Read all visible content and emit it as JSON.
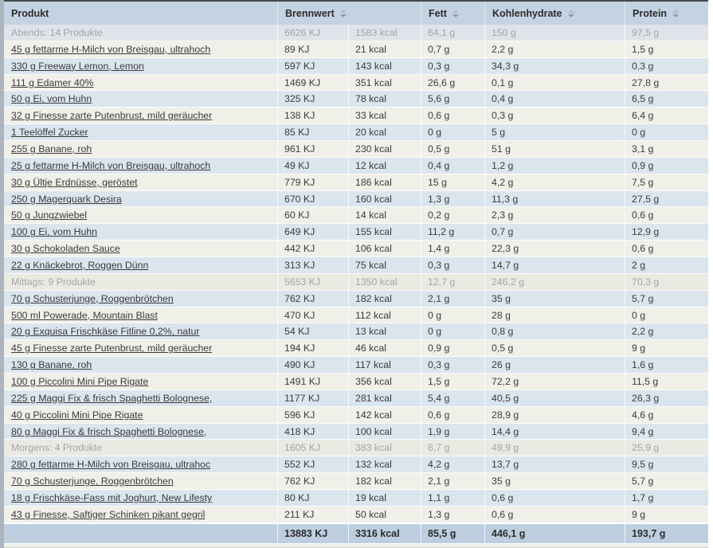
{
  "table": {
    "header": {
      "produkt": {
        "label": "Produkt",
        "sortable": false
      },
      "brennwert": {
        "label": "Brennwert",
        "sortable": true
      },
      "fett": {
        "label": "Fett",
        "sortable": true
      },
      "kohlenhydrate": {
        "label": "Kohlenhydrate",
        "sortable": true
      },
      "protein": {
        "label": "Protein",
        "sortable": true
      }
    },
    "rows": [
      {
        "type": "group",
        "name": "Abends: 14 Produkte",
        "kj": "6626 KJ",
        "kcal": "1583 kcal",
        "fett": "64,1 g",
        "kh": "150 g",
        "protein": "97,5 g"
      },
      {
        "type": "item",
        "name": "45 g fettarme H-Milch von Breisgau, ultrahoch",
        "kj": "89 KJ",
        "kcal": "21 kcal",
        "fett": "0,7 g",
        "kh": "2,2 g",
        "protein": "1,5 g"
      },
      {
        "type": "item",
        "name": "330 g Freeway Lemon, Lemon",
        "kj": "597 KJ",
        "kcal": "143 kcal",
        "fett": "0,3 g",
        "kh": "34,3 g",
        "protein": "0,3 g"
      },
      {
        "type": "item",
        "name": "111 g Edamer 40%",
        "kj": "1469 KJ",
        "kcal": "351 kcal",
        "fett": "26,6 g",
        "kh": "0,1 g",
        "protein": "27,8 g"
      },
      {
        "type": "item",
        "name": "50 g Ei, vom Huhn",
        "kj": "325 KJ",
        "kcal": "78 kcal",
        "fett": "5,6 g",
        "kh": "0,4 g",
        "protein": "6,5 g"
      },
      {
        "type": "item",
        "name": "32 g Finesse zarte Putenbrust, mild geräucher",
        "kj": "138 KJ",
        "kcal": "33 kcal",
        "fett": "0,6 g",
        "kh": "0,3 g",
        "protein": "6,4 g"
      },
      {
        "type": "item",
        "name": "1 Teelöffel Zucker",
        "kj": "85 KJ",
        "kcal": "20 kcal",
        "fett": "0 g",
        "kh": "5 g",
        "protein": "0 g"
      },
      {
        "type": "item",
        "name": "255 g Banane, roh",
        "kj": "961 KJ",
        "kcal": "230 kcal",
        "fett": "0,5 g",
        "kh": "51 g",
        "protein": "3,1 g"
      },
      {
        "type": "item",
        "name": "25 g fettarme H-Milch von Breisgau, ultrahoch",
        "kj": "49 KJ",
        "kcal": "12 kcal",
        "fett": "0,4 g",
        "kh": "1,2 g",
        "protein": "0,9 g"
      },
      {
        "type": "item",
        "name": "30 g Ültje Erdnüsse, geröstet",
        "kj": "779 KJ",
        "kcal": "186 kcal",
        "fett": "15 g",
        "kh": "4,2 g",
        "protein": "7,5 g"
      },
      {
        "type": "item",
        "name": "250 g Magerquark Desira",
        "kj": "670 KJ",
        "kcal": "160 kcal",
        "fett": "1,3 g",
        "kh": "11,3 g",
        "protein": "27,5 g"
      },
      {
        "type": "item",
        "name": "50 g Jungzwiebel",
        "kj": "60 KJ",
        "kcal": "14 kcal",
        "fett": "0,2 g",
        "kh": "2,3 g",
        "protein": "0,6 g"
      },
      {
        "type": "item",
        "name": "100 g Ei, vom Huhn",
        "kj": "649 KJ",
        "kcal": "155 kcal",
        "fett": "11,2 g",
        "kh": "0,7 g",
        "protein": "12,9 g"
      },
      {
        "type": "item",
        "name": "30 g Schokoladen Sauce",
        "kj": "442 KJ",
        "kcal": "106 kcal",
        "fett": "1,4 g",
        "kh": "22,3 g",
        "protein": "0,6 g"
      },
      {
        "type": "item",
        "name": "22 g Knäckebrot, Roggen Dünn",
        "kj": "313 KJ",
        "kcal": "75 kcal",
        "fett": "0,3 g",
        "kh": "14,7 g",
        "protein": "2 g"
      },
      {
        "type": "group",
        "name": "Mittags: 9 Produkte",
        "kj": "5653 KJ",
        "kcal": "1350 kcal",
        "fett": "12,7 g",
        "kh": "246,2 g",
        "protein": "70,3 g"
      },
      {
        "type": "item",
        "name": "70 g Schusterjunge, Roggenbrötchen",
        "kj": "762 KJ",
        "kcal": "182 kcal",
        "fett": "2,1 g",
        "kh": "35 g",
        "protein": "5,7 g"
      },
      {
        "type": "item",
        "name": "500 ml Powerade, Mountain Blast",
        "kj": "470 KJ",
        "kcal": "112 kcal",
        "fett": "0 g",
        "kh": "28 g",
        "protein": "0 g"
      },
      {
        "type": "item",
        "name": "20 g Exquisa Frischkäse Fitline 0,2%, natur",
        "kj": "54 KJ",
        "kcal": "13 kcal",
        "fett": "0 g",
        "kh": "0,8 g",
        "protein": "2,2 g"
      },
      {
        "type": "item",
        "name": "45 g Finesse zarte Putenbrust, mild geräucher",
        "kj": "194 KJ",
        "kcal": "46 kcal",
        "fett": "0,9 g",
        "kh": "0,5 g",
        "protein": "9 g"
      },
      {
        "type": "item",
        "name": "130 g Banane, roh",
        "kj": "490 KJ",
        "kcal": "117 kcal",
        "fett": "0,3 g",
        "kh": "26 g",
        "protein": "1,6 g"
      },
      {
        "type": "item",
        "name": "100 g Piccolini Mini Pipe Rigate",
        "kj": "1491 KJ",
        "kcal": "356 kcal",
        "fett": "1,5 g",
        "kh": "72,2 g",
        "protein": "11,5 g"
      },
      {
        "type": "item",
        "name": "225 g Maggi Fix & frisch Spaghetti Bolognese,",
        "kj": "1177 KJ",
        "kcal": "281 kcal",
        "fett": "5,4 g",
        "kh": "40,5 g",
        "protein": "26,3 g"
      },
      {
        "type": "item",
        "name": "40 g Piccolini Mini Pipe Rigate",
        "kj": "596 KJ",
        "kcal": "142 kcal",
        "fett": "0,6 g",
        "kh": "28,9 g",
        "protein": "4,6 g"
      },
      {
        "type": "item",
        "name": "80 g Maggi Fix & frisch Spaghetti Bolognese,",
        "kj": "418 KJ",
        "kcal": "100 kcal",
        "fett": "1,9 g",
        "kh": "14,4 g",
        "protein": "9,4 g"
      },
      {
        "type": "group",
        "name": "Morgens: 4 Produkte",
        "kj": "1605 KJ",
        "kcal": "383 kcal",
        "fett": "8,7 g",
        "kh": "49,9 g",
        "protein": "25,9 g"
      },
      {
        "type": "item",
        "name": "280 g fettarme H-Milch von Breisgau, ultrahoc",
        "kj": "552 KJ",
        "kcal": "132 kcal",
        "fett": "4,2 g",
        "kh": "13,7 g",
        "protein": "9,5 g"
      },
      {
        "type": "item",
        "name": "70 g Schusterjunge, Roggenbrötchen",
        "kj": "762 KJ",
        "kcal": "182 kcal",
        "fett": "2,1 g",
        "kh": "35 g",
        "protein": "5,7 g"
      },
      {
        "type": "item",
        "name": "18 g Frischkäse-Fass mit Joghurt, New Lifesty",
        "kj": "80 KJ",
        "kcal": "19 kcal",
        "fett": "1,1 g",
        "kh": "0,6 g",
        "protein": "1,7 g"
      },
      {
        "type": "item",
        "name": "43 g Finesse, Saftiger Schinken pikant gegril",
        "kj": "211 KJ",
        "kcal": "50 kcal",
        "fett": "1,3 g",
        "kh": "0,6 g",
        "protein": "9 g"
      }
    ],
    "footer": {
      "produkt": "",
      "kj": "13883 KJ",
      "kcal": "3316 kcal",
      "fett": "85,5 g",
      "kh": "446,1 g",
      "protein": "193,7 g"
    }
  },
  "colors": {
    "header_bg": "#c4d3e1",
    "footer_bg": "#bdcfdf",
    "row_blue": "#dbe5ee",
    "row_cream": "#f0f0e8",
    "group_text": "#a5a5a5",
    "link_text": "#3a3a3a"
  },
  "icons": {
    "sort": "sort-arrows-icon"
  }
}
